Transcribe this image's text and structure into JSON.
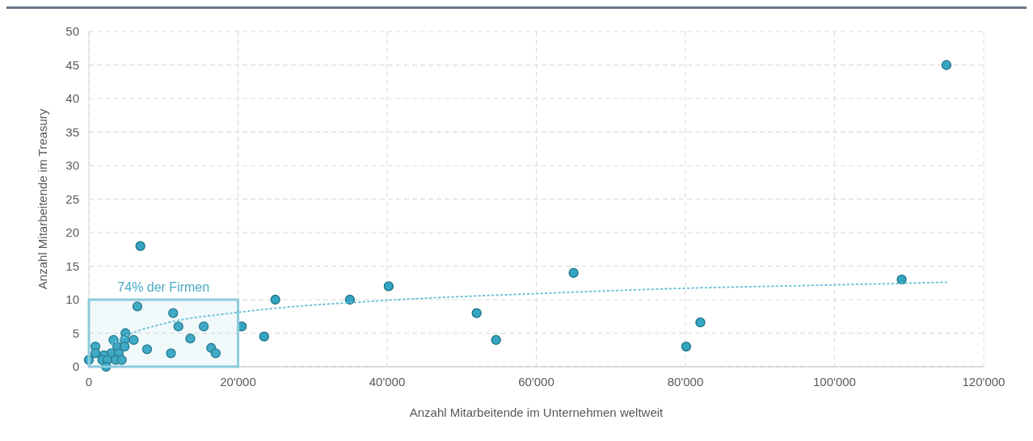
{
  "chart_data": {
    "type": "scatter",
    "xlabel": "Anzahl Mitarbeitende im Unternehmen weltweit",
    "ylabel": "Anzahl Mitarbeitende im Treasury",
    "xlim": [
      0,
      120000
    ],
    "xticks": [
      0,
      {
        "value": 20000,
        "label": "20'000"
      },
      {
        "value": 40000,
        "label": "40'000"
      },
      {
        "value": 60000,
        "label": "60'000"
      },
      {
        "value": 80000,
        "label": "80'000"
      },
      {
        "value": 100000,
        "label": "100'000"
      },
      {
        "value": 120000,
        "label": "120'000"
      }
    ],
    "ylim": [
      0,
      50
    ],
    "yticks": [
      0,
      5,
      10,
      15,
      20,
      25,
      30,
      35,
      40,
      45,
      50
    ],
    "grid": true,
    "marker": "circle",
    "bands": [
      {
        "axis": "x",
        "from": 0,
        "to": 20000,
        "color": "#8ccbdc"
      }
    ],
    "annotations": [
      {
        "text": "74% der Firmen",
        "x": 10000,
        "y": 10
      }
    ],
    "series": [
      {
        "type": "scatter",
        "color": "#35a6c2",
        "x": [
          115000,
          6900,
          109000,
          65000,
          40200,
          35000,
          25000,
          20500,
          23500,
          52000,
          54600,
          82000,
          80100,
          6500,
          11300,
          12000,
          15400,
          4900,
          3300,
          4800,
          6000,
          13600,
          3800,
          4800,
          870,
          7800,
          16400,
          17000,
          11000,
          870,
          3000,
          4000,
          2000,
          0,
          1800,
          2500,
          3600,
          4400,
          2300
        ],
        "values": [
          45,
          18,
          13,
          14,
          12,
          10,
          10,
          6,
          4.5,
          8,
          4,
          6.6,
          3,
          9,
          8,
          6,
          6,
          5,
          4,
          4,
          4,
          4.2,
          3,
          3,
          3,
          2.6,
          2.8,
          2,
          2,
          2,
          2,
          2,
          1.7,
          1,
          1,
          1,
          1,
          1,
          0
        ]
      },
      {
        "type": "line",
        "color": "#6cc3da",
        "line_style": "dotted",
        "marker": "none",
        "x": [
          3000,
          5000,
          10000,
          20000,
          40000,
          60000,
          80000,
          100000,
          115000
        ],
        "values": [
          3.3,
          4.6,
          6.4,
          8.1,
          9.9,
          10.9,
          11.7,
          12.2,
          12.6
        ]
      }
    ]
  }
}
